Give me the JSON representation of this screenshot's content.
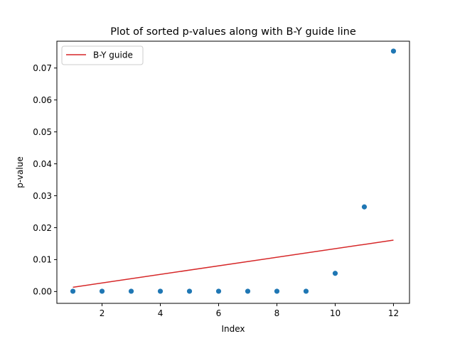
{
  "chart_data": {
    "type": "scatter",
    "title": "Plot of sorted p-values along with B-Y guide line",
    "xlabel": "Index",
    "ylabel": "p-value",
    "xlim": [
      0.45,
      12.55
    ],
    "ylim": [
      -0.0037,
      0.0784
    ],
    "xticks": [
      2,
      4,
      6,
      8,
      10,
      12
    ],
    "yticks": [
      0.0,
      0.01,
      0.02,
      0.03,
      0.04,
      0.05,
      0.06,
      0.07
    ],
    "xtick_labels": [
      "2",
      "4",
      "6",
      "8",
      "10",
      "12"
    ],
    "ytick_labels": [
      "0.00",
      "0.01",
      "0.02",
      "0.03",
      "0.04",
      "0.05",
      "0.06",
      "0.07"
    ],
    "grid": false,
    "legend_position": "upper-left",
    "series": [
      {
        "kind": "scatter",
        "color": "#1f77b4",
        "x": [
          1,
          2,
          3,
          4,
          5,
          6,
          7,
          8,
          9,
          10,
          11,
          12
        ],
        "y": [
          0.0001,
          0.0001,
          0.0001,
          0.0001,
          0.0001,
          0.0001,
          0.0001,
          0.0001,
          0.0001,
          0.0057,
          0.0265,
          0.0753
        ]
      },
      {
        "kind": "line",
        "name": "B-Y guide",
        "color": "#d62728",
        "x": [
          1,
          12
        ],
        "y": [
          0.00134,
          0.0161
        ]
      }
    ]
  }
}
